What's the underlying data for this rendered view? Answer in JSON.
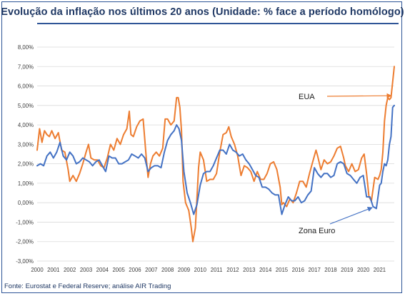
{
  "chart_data": {
    "type": "line",
    "title": "Evolução da inflação nos últimos 20 anos (Unidade: % face a período homólogo)",
    "source": "Fonte: Eurostat e Federal Reserve; análise AIR Trading",
    "xlim": [
      2000,
      2021.9
    ],
    "ylim": [
      -3,
      8
    ],
    "x_ticks": [
      2000,
      2001,
      2002,
      2003,
      2004,
      2005,
      2006,
      2007,
      2008,
      2009,
      2010,
      2011,
      2012,
      2013,
      2014,
      2015,
      2016,
      2017,
      2018,
      2019,
      2020,
      2021
    ],
    "y_ticks": [
      -3,
      -2,
      -1,
      0,
      1,
      2,
      3,
      4,
      5,
      6,
      7,
      8
    ],
    "y_tick_labels": [
      "-3,00%",
      "-2,00%",
      "-1,00%",
      "0,00%",
      "1,00%",
      "2,00%",
      "3,00%",
      "4,00%",
      "5,00%",
      "6,00%",
      "7,00%",
      "8,00%"
    ],
    "grid": "horizontal",
    "annotations": [
      {
        "text": "EUA",
        "series": "EUA"
      },
      {
        "text": "Zona Euro",
        "series": "Zona Euro"
      }
    ],
    "colors": {
      "EUA": "#ed7d31",
      "Zona Euro": "#4472c4"
    },
    "series": [
      {
        "name": "EUA",
        "x": [
          2000.0,
          2000.15,
          2000.3,
          2000.45,
          2000.6,
          2000.75,
          2000.9,
          2001.1,
          2001.3,
          2001.5,
          2001.7,
          2001.9,
          2002.0,
          2002.2,
          2002.4,
          2002.6,
          2002.8,
          2003.0,
          2003.15,
          2003.3,
          2003.5,
          2003.7,
          2003.9,
          2004.1,
          2004.3,
          2004.5,
          2004.7,
          2004.9,
          2005.1,
          2005.3,
          2005.5,
          2005.65,
          2005.75,
          2005.9,
          2006.1,
          2006.3,
          2006.5,
          2006.7,
          2006.8,
          2006.95,
          2007.1,
          2007.3,
          2007.5,
          2007.7,
          2007.85,
          2008.0,
          2008.2,
          2008.4,
          2008.55,
          2008.65,
          2008.75,
          2008.85,
          2008.95,
          2009.1,
          2009.3,
          2009.45,
          2009.55,
          2009.7,
          2009.9,
          2010.0,
          2010.2,
          2010.4,
          2010.6,
          2010.8,
          2011.0,
          2011.2,
          2011.4,
          2011.6,
          2011.75,
          2011.9,
          2012.1,
          2012.3,
          2012.5,
          2012.7,
          2012.9,
          2013.1,
          2013.3,
          2013.5,
          2013.7,
          2013.9,
          2014.1,
          2014.3,
          2014.5,
          2014.7,
          2014.9,
          2015.0,
          2015.1,
          2015.3,
          2015.5,
          2015.7,
          2015.9,
          2016.1,
          2016.3,
          2016.5,
          2016.7,
          2016.9,
          2017.1,
          2017.2,
          2017.4,
          2017.6,
          2017.8,
          2018.0,
          2018.2,
          2018.4,
          2018.6,
          2018.8,
          2018.9,
          2019.1,
          2019.3,
          2019.5,
          2019.7,
          2019.9,
          2020.05,
          2020.2,
          2020.35,
          2020.5,
          2020.7,
          2020.9,
          2021.0,
          2021.1,
          2021.2,
          2021.3,
          2021.4,
          2021.5,
          2021.6,
          2021.7,
          2021.8,
          2021.9
        ],
        "values": [
          2.7,
          3.8,
          3.1,
          3.7,
          3.5,
          3.4,
          3.7,
          3.3,
          3.6,
          2.7,
          2.6,
          1.7,
          1.1,
          1.4,
          1.1,
          1.5,
          2.0,
          2.6,
          3.0,
          2.3,
          2.2,
          2.2,
          1.9,
          1.8,
          2.3,
          3.0,
          2.7,
          3.3,
          3.0,
          3.5,
          3.8,
          4.7,
          3.5,
          3.4,
          3.9,
          4.2,
          4.3,
          2.2,
          1.3,
          2.0,
          2.4,
          2.6,
          2.4,
          2.8,
          4.3,
          4.3,
          4.0,
          4.2,
          5.4,
          5.4,
          4.9,
          3.7,
          1.1,
          0.0,
          -0.4,
          -1.3,
          -2.0,
          -1.3,
          1.8,
          2.6,
          2.2,
          1.1,
          1.2,
          1.2,
          1.5,
          2.6,
          3.5,
          3.6,
          3.9,
          3.4,
          3.0,
          2.4,
          1.4,
          1.9,
          1.8,
          1.6,
          1.1,
          1.6,
          1.2,
          1.2,
          1.5,
          2.0,
          2.1,
          1.7,
          0.8,
          -0.1,
          0.0,
          -0.2,
          0.2,
          0.0,
          0.5,
          1.1,
          1.1,
          0.8,
          1.5,
          2.1,
          2.7,
          2.4,
          1.7,
          2.2,
          2.0,
          2.1,
          2.4,
          2.8,
          2.9,
          2.3,
          1.9,
          1.6,
          2.0,
          1.6,
          1.7,
          2.3,
          2.5,
          1.5,
          0.3,
          0.1,
          1.3,
          1.2,
          1.4,
          1.7,
          2.6,
          4.2,
          5.0,
          5.4,
          5.3,
          5.4,
          6.2,
          7.0
        ]
      },
      {
        "name": "Zona Euro",
        "x": [
          2000.0,
          2000.2,
          2000.4,
          2000.6,
          2000.8,
          2001.0,
          2001.2,
          2001.4,
          2001.6,
          2001.8,
          2002.0,
          2002.2,
          2002.4,
          2002.6,
          2002.8,
          2003.0,
          2003.2,
          2003.4,
          2003.6,
          2003.8,
          2004.0,
          2004.2,
          2004.4,
          2004.6,
          2004.8,
          2005.0,
          2005.2,
          2005.4,
          2005.6,
          2005.8,
          2006.0,
          2006.2,
          2006.4,
          2006.6,
          2006.8,
          2007.0,
          2007.2,
          2007.4,
          2007.6,
          2007.8,
          2008.0,
          2008.2,
          2008.4,
          2008.55,
          2008.7,
          2008.85,
          2009.0,
          2009.2,
          2009.4,
          2009.6,
          2009.8,
          2010.0,
          2010.2,
          2010.4,
          2010.6,
          2010.8,
          2011.0,
          2011.2,
          2011.4,
          2011.6,
          2011.8,
          2012.0,
          2012.2,
          2012.4,
          2012.6,
          2012.8,
          2013.0,
          2013.2,
          2013.4,
          2013.6,
          2013.8,
          2014.0,
          2014.2,
          2014.4,
          2014.6,
          2014.8,
          2015.0,
          2015.2,
          2015.4,
          2015.6,
          2015.8,
          2016.0,
          2016.2,
          2016.4,
          2016.6,
          2016.8,
          2017.0,
          2017.2,
          2017.4,
          2017.6,
          2017.8,
          2018.0,
          2018.2,
          2018.4,
          2018.6,
          2018.8,
          2019.0,
          2019.2,
          2019.4,
          2019.6,
          2019.8,
          2020.0,
          2020.2,
          2020.4,
          2020.6,
          2020.8,
          2021.0,
          2021.1,
          2021.2,
          2021.3,
          2021.4,
          2021.5,
          2021.6,
          2021.7,
          2021.8,
          2021.9
        ],
        "values": [
          1.9,
          2.0,
          1.9,
          2.4,
          2.6,
          2.3,
          2.6,
          3.1,
          2.4,
          2.2,
          2.6,
          2.4,
          2.0,
          2.1,
          2.3,
          2.2,
          2.1,
          1.9,
          2.1,
          2.2,
          1.9,
          1.6,
          2.4,
          2.3,
          2.3,
          2.0,
          2.0,
          2.1,
          2.2,
          2.5,
          2.4,
          2.3,
          2.5,
          2.3,
          1.6,
          1.8,
          1.9,
          1.9,
          1.8,
          2.6,
          3.2,
          3.5,
          3.7,
          4.0,
          3.8,
          3.2,
          1.6,
          0.5,
          0.0,
          -0.6,
          -0.1,
          0.9,
          1.5,
          1.6,
          1.6,
          1.9,
          2.3,
          2.7,
          2.7,
          2.5,
          3.0,
          2.7,
          2.6,
          2.4,
          2.5,
          2.2,
          2.0,
          1.7,
          1.4,
          1.3,
          0.8,
          0.8,
          0.7,
          0.5,
          0.4,
          0.4,
          -0.6,
          -0.1,
          0.3,
          0.1,
          0.1,
          0.3,
          0.0,
          0.1,
          0.4,
          0.6,
          1.8,
          1.5,
          1.3,
          1.5,
          1.5,
          1.3,
          1.4,
          2.0,
          2.1,
          2.0,
          1.5,
          1.4,
          1.2,
          1.0,
          1.3,
          1.4,
          0.3,
          0.3,
          -0.2,
          -0.3,
          0.9,
          1.0,
          1.6,
          2.0,
          1.9,
          2.2,
          3.0,
          3.4,
          4.9,
          5.0
        ]
      }
    ]
  }
}
